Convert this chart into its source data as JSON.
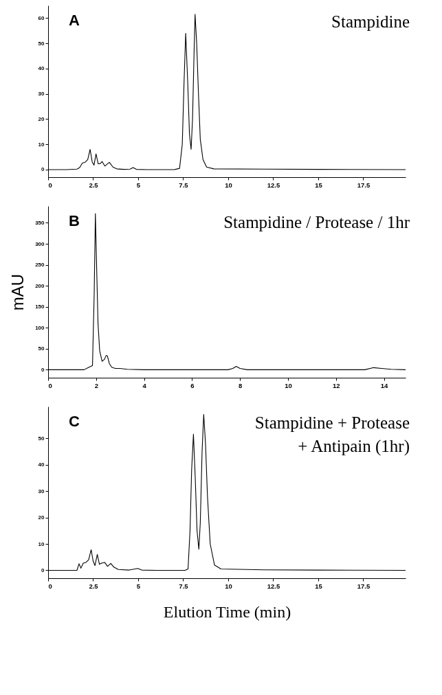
{
  "chart_data": [
    {
      "type": "line",
      "title": "A",
      "annotations": [
        "Stampidine"
      ],
      "xlim": [
        0,
        19.85
      ],
      "ylim": [
        -3,
        65
      ],
      "xticks": [
        0,
        2.5,
        5,
        7.5,
        10,
        12.5,
        15,
        17.5
      ],
      "yticks": [
        0,
        10,
        20,
        30,
        40,
        50,
        60
      ],
      "x": [
        0,
        1.0,
        1.6,
        1.75,
        1.9,
        2.05,
        2.2,
        2.33,
        2.45,
        2.55,
        2.66,
        2.78,
        2.9,
        3.0,
        3.15,
        3.4,
        3.6,
        3.8,
        4.2,
        4.55,
        4.72,
        4.9,
        5.5,
        7.0,
        7.3,
        7.45,
        7.55,
        7.64,
        7.75,
        7.85,
        7.94,
        8.02,
        8.1,
        8.16,
        8.25,
        8.35,
        8.45,
        8.6,
        8.8,
        9.2,
        12,
        15,
        19.85
      ],
      "series": [
        {
          "color": "#000000",
          "values": [
            0,
            0,
            0.2,
            0.8,
            2.6,
            2.9,
            4,
            8,
            3,
            1.8,
            6.2,
            2.3,
            2.4,
            3.2,
            1.4,
            2.9,
            1,
            0.3,
            0.1,
            0.2,
            0.8,
            0.1,
            0,
            0,
            0.5,
            10,
            35,
            54,
            35,
            14,
            8,
            20,
            45,
            61.5,
            50,
            30,
            12,
            4,
            1,
            0.3,
            0.2,
            0.1,
            0
          ]
        }
      ]
    },
    {
      "type": "line",
      "title": "B",
      "annotations": [
        "Stampidine / Protease / 1hr"
      ],
      "ylabel": "mAU",
      "xlim": [
        0,
        14.9
      ],
      "ylim": [
        -19,
        390
      ],
      "xticks": [
        0,
        2,
        4,
        6,
        8,
        10,
        12,
        14
      ],
      "yticks": [
        0,
        50,
        100,
        150,
        200,
        250,
        300,
        350
      ],
      "x": [
        0,
        1.5,
        1.7,
        1.85,
        1.92,
        1.97,
        2.02,
        2.08,
        2.15,
        2.25,
        2.35,
        2.42,
        2.47,
        2.55,
        2.65,
        2.8,
        3.0,
        3.3,
        4,
        5,
        6,
        7.5,
        7.7,
        7.84,
        8.0,
        8.3,
        9,
        11,
        13.2,
        13.57,
        13.9,
        14.3,
        14.9
      ],
      "series": [
        {
          "color": "#000000",
          "values": [
            0,
            0,
            6,
            10,
            180,
            372,
            250,
            110,
            45,
            20,
            25,
            34,
            33,
            15,
            6,
            3,
            3,
            1,
            0,
            0,
            0,
            0,
            3,
            8,
            3,
            0,
            0,
            0,
            0,
            5,
            3,
            1,
            0
          ]
        }
      ]
    },
    {
      "type": "line",
      "title": "C",
      "annotations": [
        "Stampidine + Protease",
        "+ Antipain (1hr)"
      ],
      "xlabel": "Elution Time (min)",
      "xlim": [
        0,
        19.85
      ],
      "ylim": [
        -3,
        62
      ],
      "xticks": [
        0,
        2.5,
        5,
        7.5,
        10,
        12.5,
        15,
        17.5
      ],
      "yticks": [
        0,
        10,
        20,
        30,
        40,
        50
      ],
      "x": [
        0,
        1.0,
        1.6,
        1.72,
        1.82,
        1.95,
        2.1,
        2.25,
        2.39,
        2.5,
        2.6,
        2.73,
        2.85,
        3.0,
        3.14,
        3.3,
        3.48,
        3.65,
        3.9,
        4.5,
        4.98,
        5.2,
        6,
        7.6,
        7.77,
        7.88,
        7.97,
        8.07,
        8.17,
        8.27,
        8.37,
        8.45,
        8.55,
        8.64,
        8.74,
        8.85,
        9.0,
        9.24,
        9.6,
        12,
        15,
        19.85
      ],
      "series": [
        {
          "color": "#000000",
          "values": [
            0,
            0,
            0,
            2.5,
            0.8,
            2.7,
            3,
            4,
            7.8,
            3.5,
            1.8,
            6,
            2.3,
            2.8,
            3,
            1.5,
            2.6,
            1.2,
            0.3,
            0.1,
            0.7,
            0.1,
            0,
            0,
            0.5,
            15,
            38,
            51.5,
            35,
            15,
            8,
            18,
            45,
            59,
            48,
            28,
            10,
            2,
            0.5,
            0.2,
            0.1,
            0
          ]
        }
      ]
    }
  ]
}
